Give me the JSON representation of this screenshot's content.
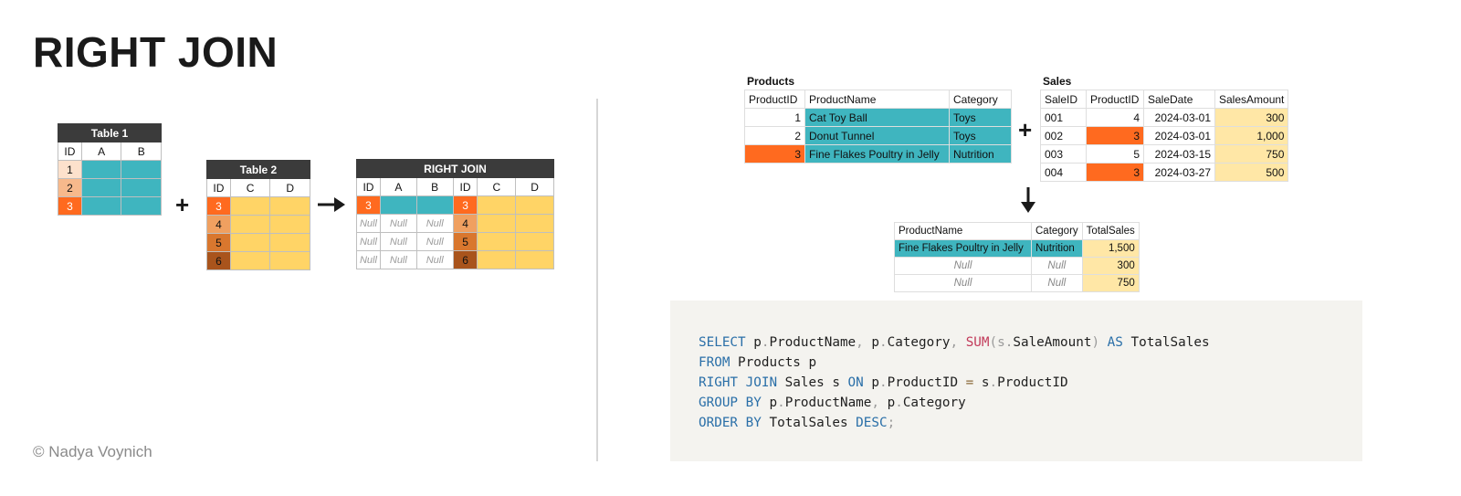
{
  "title": "RIGHT JOIN",
  "copyright": "© Nadya Voynich",
  "abstract": {
    "table1": {
      "title": "Table 1",
      "cols": [
        "ID",
        "A",
        "B"
      ],
      "ids": [
        "1",
        "2",
        "3"
      ]
    },
    "table2": {
      "title": "Table 2",
      "cols": [
        "ID",
        "C",
        "D"
      ],
      "ids": [
        "3",
        "4",
        "5",
        "6"
      ]
    },
    "join": {
      "title": "RIGHT JOIN",
      "cols": [
        "ID",
        "A",
        "B",
        "ID",
        "C",
        "D"
      ],
      "left_ids": [
        "3",
        "Null",
        "Null",
        "Null"
      ],
      "right_ids": [
        "3",
        "4",
        "5",
        "6"
      ],
      "null_label": "Null"
    },
    "plus": "+",
    "arrow": "→",
    "colors": {
      "teal": "#3fb5bf",
      "yellow": "#ffd466",
      "id1": "#fde1cc",
      "id2": "#f7b98c",
      "id3": "#ff6a1f",
      "id4": "#f0a060",
      "id5": "#d9772e",
      "id6": "#a9541c"
    }
  },
  "products": {
    "title": "Products",
    "headers": [
      "ProductID",
      "ProductName",
      "Category"
    ],
    "rows": [
      [
        "1",
        "Cat Toy Ball",
        "Toys"
      ],
      [
        "2",
        "Donut Tunnel",
        "Toys"
      ],
      [
        "3",
        "Fine Flakes Poultry in Jelly",
        "Nutrition"
      ]
    ]
  },
  "sales": {
    "title": "Sales",
    "headers": [
      "SaleID",
      "ProductID",
      "SaleDate",
      "SalesAmount"
    ],
    "rows": [
      [
        "001",
        "4",
        "2024-03-01",
        "300"
      ],
      [
        "002",
        "3",
        "2024-03-01",
        "1,000"
      ],
      [
        "003",
        "5",
        "2024-03-15",
        "750"
      ],
      [
        "004",
        "3",
        "2024-03-27",
        "500"
      ]
    ]
  },
  "result": {
    "headers": [
      "ProductName",
      "Category",
      "TotalSales"
    ],
    "rows": [
      [
        "Fine Flakes Poultry in Jelly",
        "Nutrition",
        "1,500"
      ],
      [
        "Null",
        "Null",
        "300"
      ],
      [
        "Null",
        "Null",
        "750"
      ]
    ]
  },
  "code": {
    "l1": {
      "select": "SELECT",
      "p1": " p",
      "d1": ".",
      "pn": "ProductName",
      "c1": ", ",
      "p2": "p",
      "d2": ".",
      "cat": "Category",
      "c2": ", ",
      "sum": "SUM",
      "lp": "(",
      "s": "s",
      "d3": ".",
      "sa": "SaleAmount",
      "rp": ")",
      "as": " AS",
      "ts": " TotalSales"
    },
    "l2": {
      "from": "FROM",
      "rest": " Products p"
    },
    "l3": {
      "rj": "RIGHT JOIN",
      "sales": " Sales s ",
      "on": "ON",
      "p": " p",
      "d1": ".",
      "pid": "ProductID ",
      "eq": "=",
      "s": " s",
      "d2": ".",
      "sid": "ProductID"
    },
    "l4": {
      "gb": "GROUP BY",
      "p1": " p",
      "d1": ".",
      "pn": "ProductName",
      "c": ", ",
      "p2": "p",
      "d2": ".",
      "cat": "Category"
    },
    "l5": {
      "ob": "ORDER BY",
      "ts": " TotalSales ",
      "desc": "DESC",
      "semi": ";"
    }
  }
}
